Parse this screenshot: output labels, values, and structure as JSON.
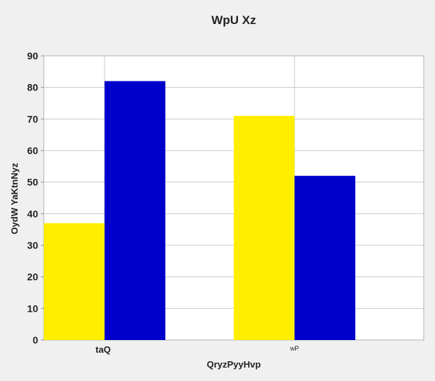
{
  "chart_data": {
    "type": "bar",
    "title": "WpU Xz",
    "xlabel": "QryzPyyHvp",
    "ylabel": "OydW YaKtnNyz",
    "categories": [
      "taQ",
      "wP"
    ],
    "series": [
      {
        "values": [
          37,
          71
        ],
        "color": "#ffee00"
      },
      {
        "values": [
          82,
          52
        ],
        "color": "#0000cc"
      }
    ],
    "ylim": [
      0,
      90
    ],
    "yticks": [
      0,
      10,
      20,
      30,
      40,
      50,
      60,
      70,
      80,
      90
    ],
    "grid": true,
    "legend": "none"
  }
}
